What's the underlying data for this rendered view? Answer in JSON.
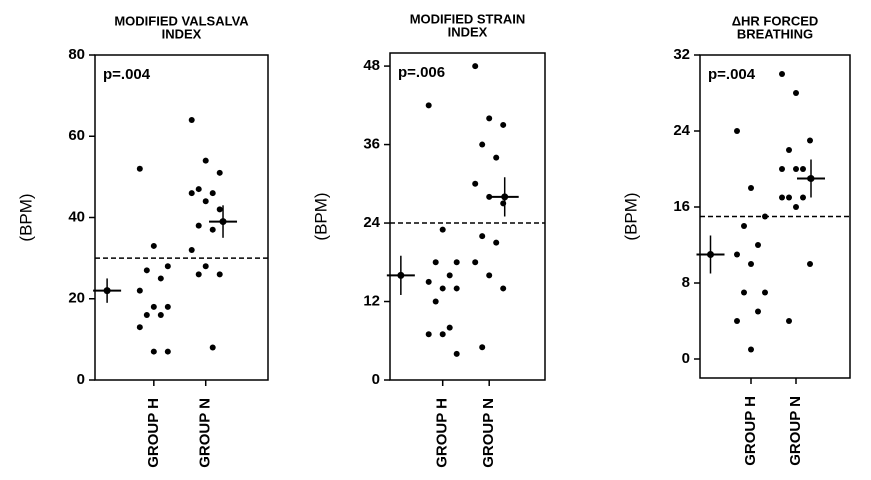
{
  "chart_data": [
    {
      "type": "strip",
      "title": [
        "MODIFIED VALSALVA",
        "INDEX"
      ],
      "ylabel": "(BPM)",
      "annotation": "p=.004",
      "ylim": [
        0,
        80
      ],
      "yticks": [
        0,
        20,
        40,
        60,
        80
      ],
      "threshold": 30,
      "series": [
        {
          "name": "GROUP H",
          "color": "#000000",
          "values": [
            52,
            33,
            28,
            27,
            25,
            22,
            18,
            18,
            16,
            16,
            13,
            7,
            7
          ],
          "mean": 22,
          "err": 3
        },
        {
          "name": "GROUP N",
          "color": "#000000",
          "values": [
            64,
            54,
            51,
            47,
            46,
            46,
            44,
            42,
            38,
            37,
            32,
            28,
            26,
            26,
            8
          ],
          "mean": 39,
          "err": 4
        }
      ]
    },
    {
      "type": "strip",
      "title": [
        "MODIFIED STRAIN",
        "INDEX"
      ],
      "ylabel": "(BPM)",
      "annotation": "p=.006",
      "ylim": [
        0,
        50
      ],
      "yticks": [
        0,
        12,
        24,
        36,
        48
      ],
      "threshold": 24,
      "series": [
        {
          "name": "GROUP H",
          "color": "#000000",
          "values": [
            42,
            23,
            18,
            18,
            16,
            15,
            14,
            14,
            12,
            8,
            7,
            7,
            4
          ],
          "mean": 16,
          "err": 3
        },
        {
          "name": "GROUP N",
          "color": "#000000",
          "values": [
            48,
            40,
            39,
            36,
            34,
            30,
            28,
            27,
            22,
            21,
            18,
            16,
            14,
            5
          ],
          "mean": 28,
          "err": 3
        }
      ]
    },
    {
      "type": "strip",
      "title": [
        "ΔHR  FORCED",
        "BREATHING"
      ],
      "ylabel": "(BPM)",
      "annotation": "p=.004",
      "ylim": [
        -2,
        32
      ],
      "yticks": [
        0,
        8,
        16,
        24,
        32
      ],
      "threshold": 15,
      "series": [
        {
          "name": "GROUP H",
          "color": "#000000",
          "values": [
            24,
            18,
            15,
            14,
            12,
            11,
            10,
            7,
            7,
            5,
            4,
            1
          ],
          "mean": 11,
          "err": 2
        },
        {
          "name": "GROUP N",
          "color": "#000000",
          "values": [
            30,
            28,
            23,
            22,
            20,
            20,
            20,
            19,
            17,
            17,
            17,
            16,
            10,
            4
          ],
          "mean": 19,
          "err": 2
        }
      ]
    }
  ]
}
